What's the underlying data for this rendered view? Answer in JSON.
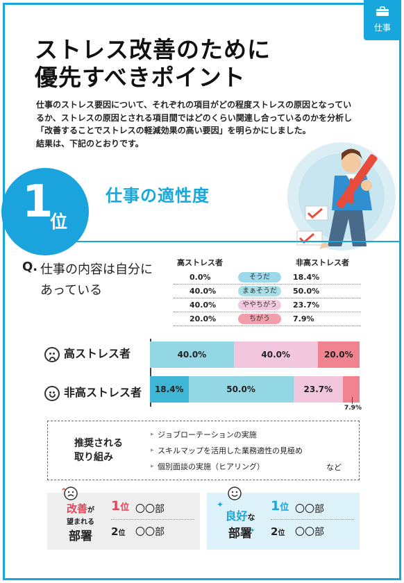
{
  "category": {
    "label": "仕事"
  },
  "title": {
    "line1": "ストレス改善のために",
    "line2": "優先すべきポイント"
  },
  "intro": {
    "line1": "仕事のストレス要因について、それぞれの項目がどの程度ストレスの原因となってい",
    "line2": "るか、ストレスの原因とされる項目間ではどのくらい関連し合っているのかを分析し",
    "line3": "「改善することでストレスの軽減効果の高い要因」を明らかにしました。",
    "line4": "結果は、下記のとおりです。"
  },
  "rank": {
    "number": "1",
    "suffix": "位",
    "title": "仕事の適性度"
  },
  "question": {
    "prefix": "Q.",
    "line1": "仕事の内容は自分に",
    "line2": "あっている"
  },
  "table": {
    "header_high": "高ストレス者",
    "header_low": "非高ストレス者",
    "rows": [
      {
        "high": "0.0%",
        "answer": "そうだ",
        "low": "18.4%",
        "color": "#9dd9ea"
      },
      {
        "high": "40.0%",
        "answer": "まぁそうだ",
        "low": "50.0%",
        "color": "#a8dfe6"
      },
      {
        "high": "40.0%",
        "answer": "ややちがう",
        "low": "23.7%",
        "color": "#f2c9de"
      },
      {
        "high": "20.0%",
        "answer": "ちがう",
        "low": "7.9%",
        "color": "#f29fab"
      }
    ]
  },
  "chart_data": {
    "type": "bar",
    "orientation": "horizontal-stacked",
    "categories": [
      "高ストレス者",
      "非高ストレス者"
    ],
    "series": [
      {
        "name": "そうだ",
        "values": [
          0.0,
          18.4
        ]
      },
      {
        "name": "まぁそうだ",
        "values": [
          40.0,
          50.0
        ]
      },
      {
        "name": "ややちがう",
        "values": [
          40.0,
          23.7
        ]
      },
      {
        "name": "ちがう",
        "values": [
          20.0,
          7.9
        ]
      }
    ],
    "labels_high": [
      "40.0%",
      "40.0%",
      "20.0%"
    ],
    "labels_low": [
      "18.4%",
      "50.0%",
      "23.7%"
    ],
    "small_label": "7.9%",
    "colors": [
      "#3fb6d6",
      "#93d6e4",
      "#f2c6dd",
      "#f0838f"
    ]
  },
  "recommend": {
    "heading1": "推奨される",
    "heading2": "取り組み",
    "items": [
      "ジョブローテーションの実施",
      "スキルマップを活用した業務適性の見極め",
      "個別面談の実施（ヒアリング）"
    ],
    "etc": "など"
  },
  "dept_bad": {
    "kw1": "改善",
    "kw_small1": "が",
    "kw_small2": "望まれる",
    "kw2": "部署",
    "ranks": [
      {
        "num": "1",
        "suffix": "位",
        "name": "〇〇部"
      },
      {
        "num": "2",
        "suffix": "位",
        "name": "〇〇部"
      }
    ]
  },
  "dept_good": {
    "kw1": "良好",
    "kw_small": "な",
    "kw2": "部署",
    "ranks": [
      {
        "num": "1",
        "suffix": "位",
        "name": "〇〇部"
      },
      {
        "num": "2",
        "suffix": "位",
        "name": "〇〇部"
      }
    ]
  }
}
